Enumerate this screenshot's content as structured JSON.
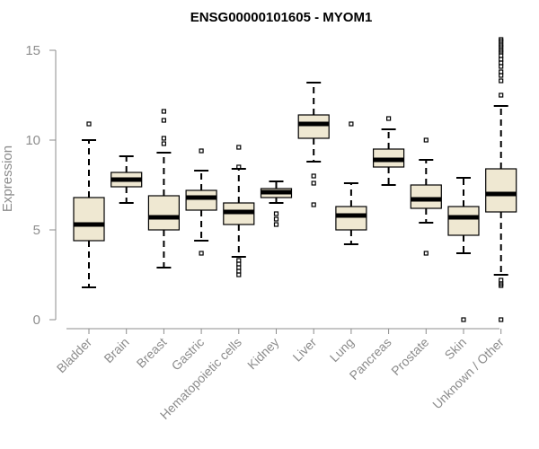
{
  "chart_data": {
    "type": "boxplot",
    "title": "ENSG00000101605 - MYOM1",
    "xlabel": "",
    "ylabel": "Expression",
    "ylim": [
      0,
      15
    ],
    "yticks": [
      0,
      5,
      10,
      15
    ],
    "grid": false,
    "categories": [
      "Bladder",
      "Brain",
      "Breast",
      "Gastric",
      "Hematopoietic cells",
      "Kidney",
      "Liver",
      "Lung",
      "Pancreas",
      "Prostate",
      "Skin",
      "Unknown / Other"
    ],
    "boxes": [
      {
        "name": "Bladder",
        "whisker_low": 1.8,
        "q1": 4.4,
        "median": 5.3,
        "q3": 6.8,
        "whisker_high": 10.0,
        "outliers": [
          10.9
        ]
      },
      {
        "name": "Brain",
        "whisker_low": 6.5,
        "q1": 7.4,
        "median": 7.8,
        "q3": 8.2,
        "whisker_high": 9.1,
        "outliers": []
      },
      {
        "name": "Breast",
        "whisker_low": 2.9,
        "q1": 5.0,
        "median": 5.7,
        "q3": 6.9,
        "whisker_high": 9.3,
        "outliers": [
          9.8,
          10.1,
          11.1,
          11.6
        ]
      },
      {
        "name": "Gastric",
        "whisker_low": 4.4,
        "q1": 6.1,
        "median": 6.8,
        "q3": 7.2,
        "whisker_high": 8.3,
        "outliers": [
          3.7,
          9.4
        ]
      },
      {
        "name": "Hematopoietic cells",
        "whisker_low": 3.5,
        "q1": 5.3,
        "median": 6.0,
        "q3": 6.5,
        "whisker_high": 8.4,
        "outliers": [
          2.5,
          2.7,
          2.9,
          3.1,
          3.3,
          8.5,
          9.6
        ]
      },
      {
        "name": "Kidney",
        "whisker_low": 6.5,
        "q1": 6.8,
        "median": 7.1,
        "q3": 7.3,
        "whisker_high": 7.7,
        "outliers": [
          5.3,
          5.6,
          5.9
        ]
      },
      {
        "name": "Liver",
        "whisker_low": 8.8,
        "q1": 10.1,
        "median": 10.9,
        "q3": 11.4,
        "whisker_high": 13.2,
        "outliers": [
          6.4,
          7.6,
          8.0
        ]
      },
      {
        "name": "Lung",
        "whisker_low": 4.2,
        "q1": 5.0,
        "median": 5.8,
        "q3": 6.3,
        "whisker_high": 7.6,
        "outliers": [
          10.9
        ]
      },
      {
        "name": "Pancreas",
        "whisker_low": 7.5,
        "q1": 8.5,
        "median": 8.9,
        "q3": 9.5,
        "whisker_high": 10.6,
        "outliers": [
          11.2
        ]
      },
      {
        "name": "Prostate",
        "whisker_low": 5.4,
        "q1": 6.2,
        "median": 6.7,
        "q3": 7.5,
        "whisker_high": 8.9,
        "outliers": [
          3.7,
          10.0
        ]
      },
      {
        "name": "Skin",
        "whisker_low": 3.7,
        "q1": 4.7,
        "median": 5.7,
        "q3": 6.3,
        "whisker_high": 7.9,
        "outliers": [
          0.0
        ]
      },
      {
        "name": "Unknown / Other",
        "whisker_low": 2.5,
        "q1": 6.0,
        "median": 7.0,
        "q3": 8.4,
        "whisker_high": 11.9,
        "outliers": [
          0.0,
          1.9,
          2.0,
          2.2,
          12.5,
          13.3,
          13.6,
          13.8,
          14.1,
          14.3,
          14.5,
          14.7,
          14.9,
          15.0,
          15.2,
          15.3,
          15.5,
          15.6
        ]
      }
    ],
    "colors": {
      "box_fill": "#efe8d2",
      "stroke": "#000000",
      "axis": "#8c8c8c"
    }
  }
}
